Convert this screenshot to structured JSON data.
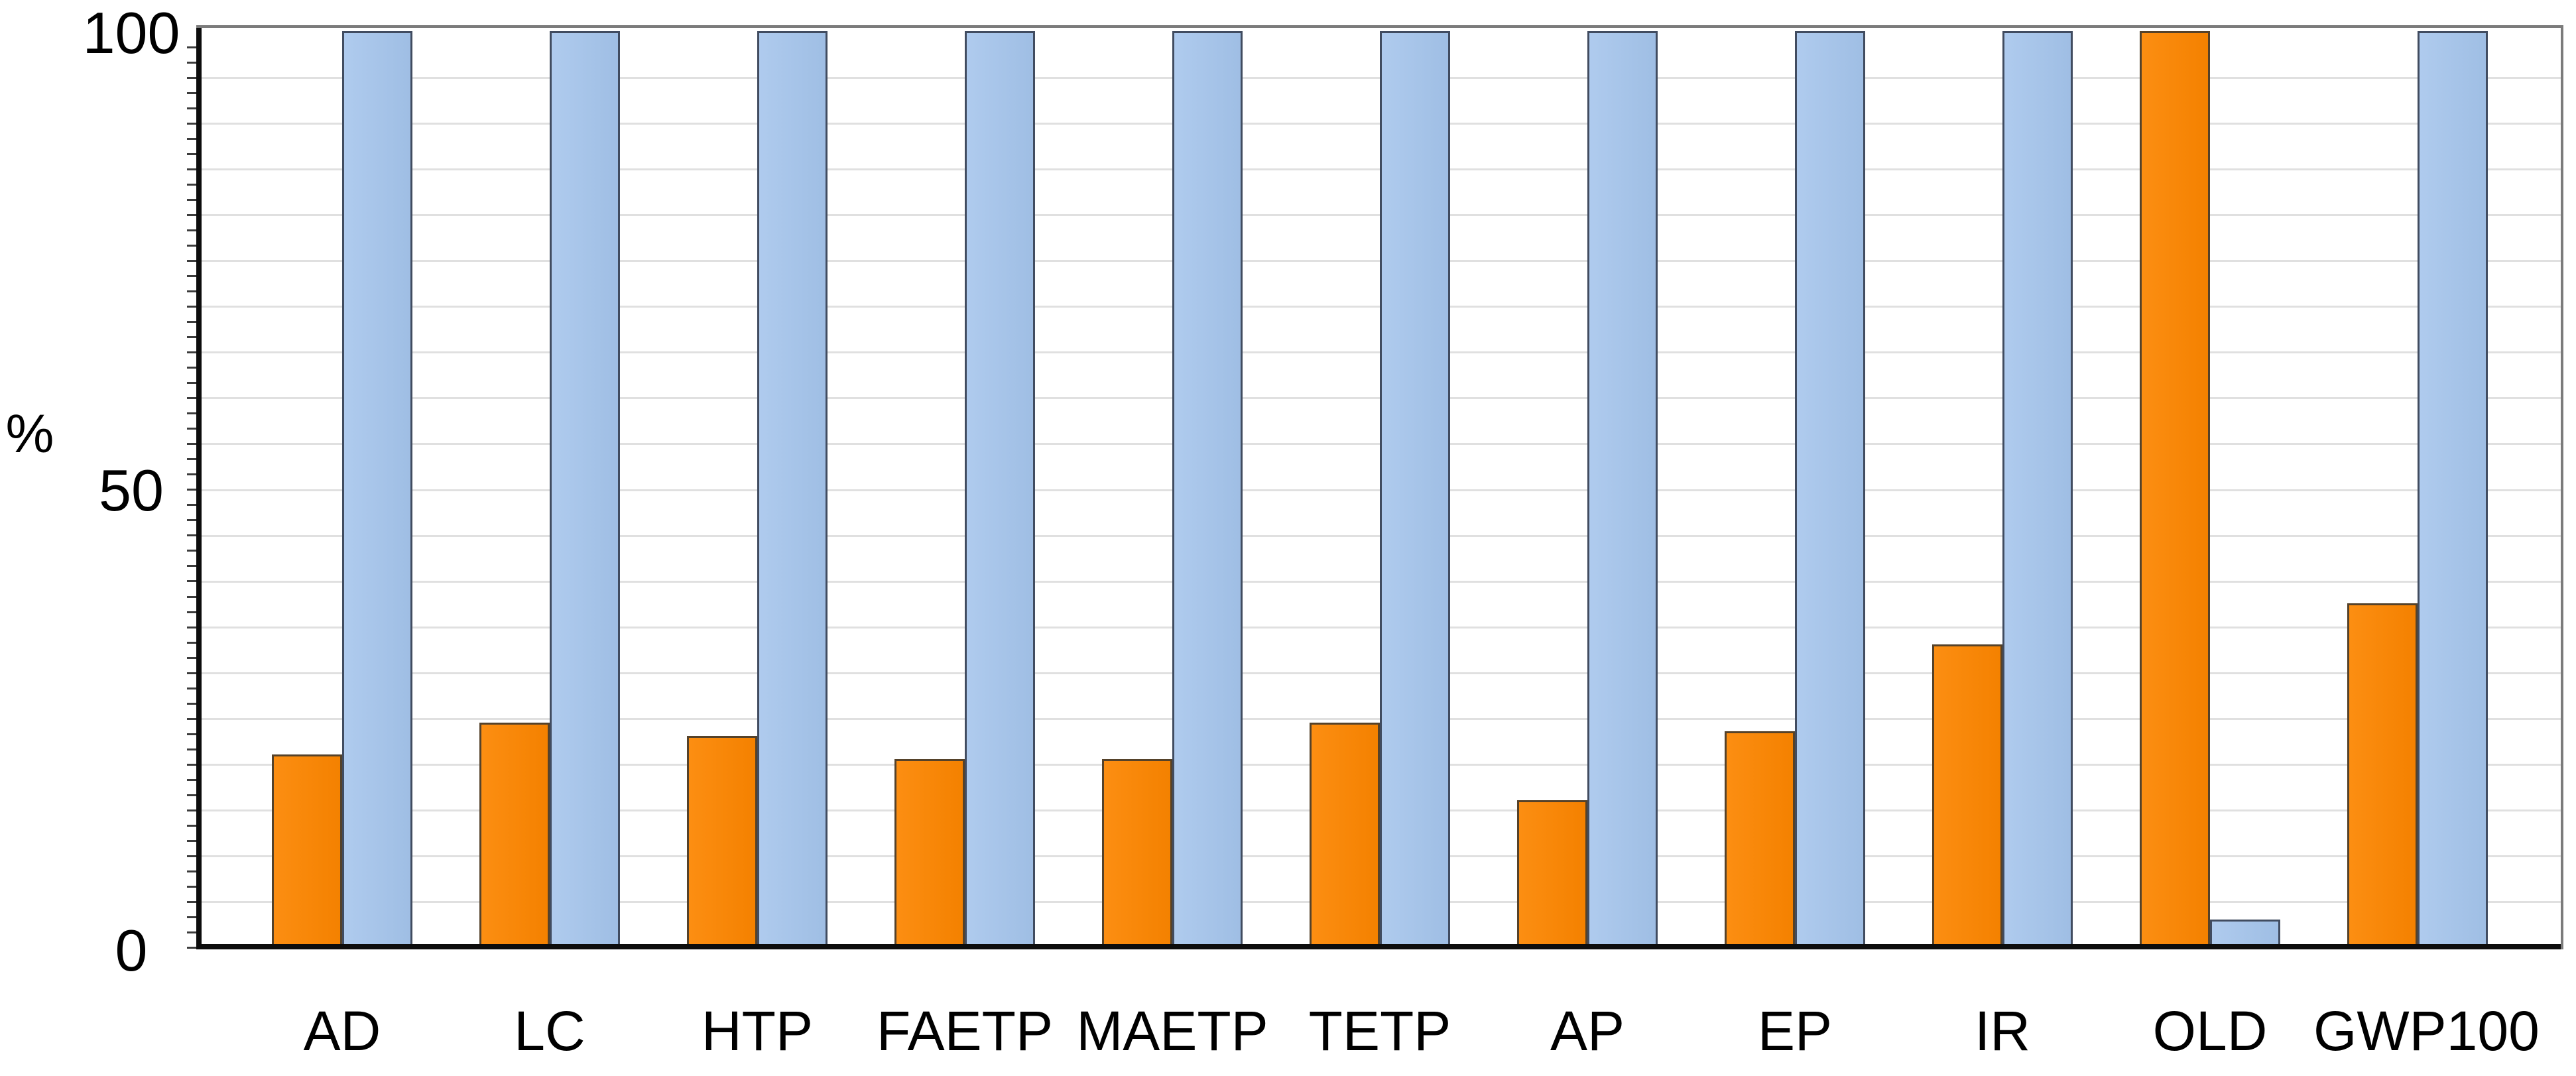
{
  "chart_data": {
    "type": "bar",
    "title": "",
    "ylabel": "%",
    "xlabel": "",
    "categories": [
      "AD",
      "LC",
      "HTP",
      "FAETP",
      "MAETP",
      "TETP",
      "AP",
      "EP",
      "IR",
      "OLD",
      "GWP100"
    ],
    "series": [
      {
        "name": "orange",
        "color": "#F48100",
        "color_light": "#FC8E12",
        "border": "#55422A",
        "values": [
          21,
          24.5,
          23,
          20.5,
          20.5,
          24.5,
          16,
          23.5,
          33,
          100,
          37.5
        ]
      },
      {
        "name": "blue",
        "color": "#9FBEE4",
        "color_light": "#AFCBEE",
        "border": "#414C60",
        "values": [
          100,
          100,
          100,
          100,
          100,
          100,
          100,
          100,
          100,
          3,
          100
        ]
      }
    ],
    "y_axis": {
      "min": 0,
      "max": 100,
      "ticks": [
        0,
        50,
        100
      ],
      "tick_labels": [
        "0",
        "50",
        "100"
      ],
      "gridline_step": 5,
      "minor_tick_step": 1.667
    },
    "grid": "horizontal",
    "legend": "none",
    "style": {
      "gridline_color": "#E0E0E0",
      "minor_tick_color": "#3C3C3C",
      "axis_color": "#0D0D0D",
      "frame_color": "#7B7B7B",
      "background": "#FFFFFF"
    }
  }
}
